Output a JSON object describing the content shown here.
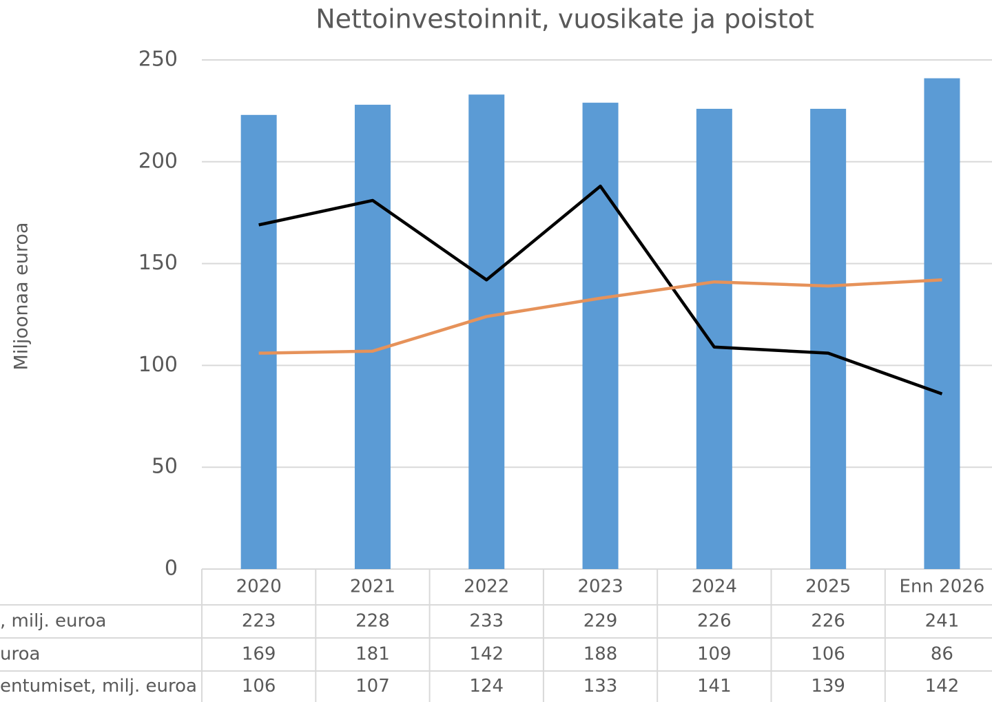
{
  "chart_data": {
    "type": "bar-line",
    "title": "Nettoinvestoinnit, vuosikate ja poistot",
    "y_label": "Miljoonaa euroa",
    "categories": [
      "2020",
      "2021",
      "2022",
      "2023",
      "2024",
      "2025",
      "Enn 2026"
    ],
    "series": [
      {
        "name": ", milj. euroa",
        "type": "bar",
        "color": "#5b9bd5",
        "values": [
          223,
          228,
          233,
          229,
          226,
          226,
          241
        ]
      },
      {
        "name": "uroa",
        "type": "line",
        "color": "#000000",
        "values": [
          169,
          181,
          142,
          188,
          109,
          106,
          86
        ]
      },
      {
        "name": "entumiset, milj. euroa",
        "type": "line",
        "color": "#e6925a",
        "values": [
          106,
          107,
          124,
          133,
          141,
          139,
          142
        ]
      }
    ],
    "ylim": [
      0,
      250
    ],
    "yticks": [
      0,
      50,
      100,
      150,
      200,
      250
    ],
    "grid": true
  }
}
